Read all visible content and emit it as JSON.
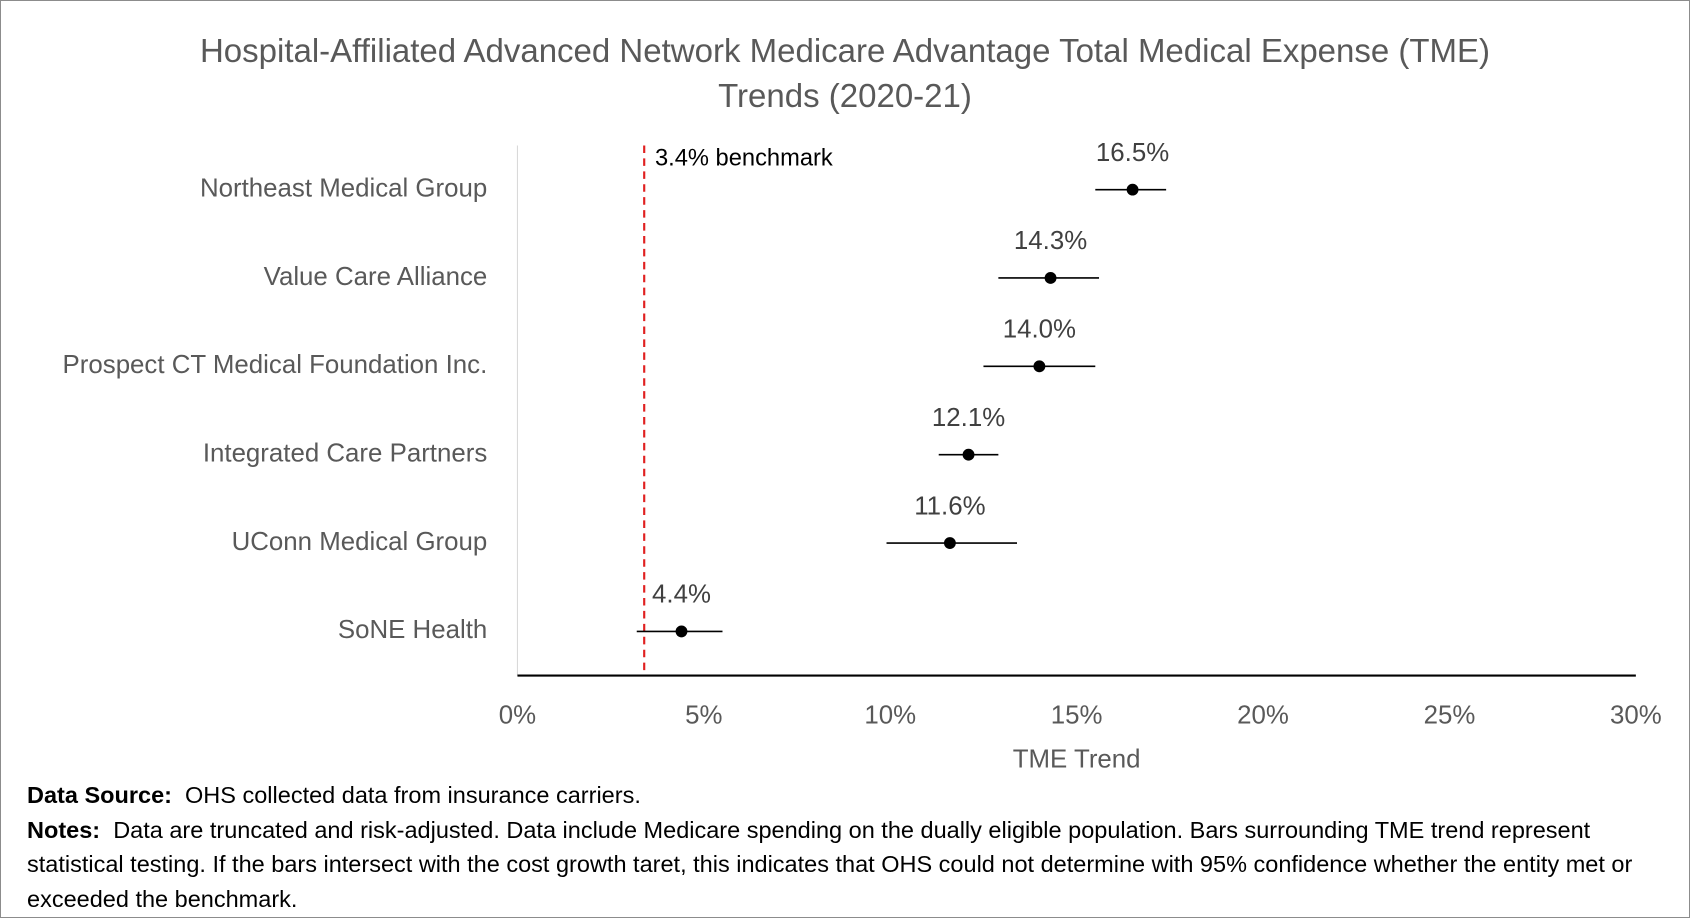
{
  "chart_data": {
    "type": "errorbar",
    "title": "Hospital-Affiliated Advanced Network Medicare Advantage Total Medical Expense (TME) Trends (2020-21)",
    "categories": [
      "Northeast Medical Group",
      "Value Care Alliance",
      "Prospect CT Medical Foundation Inc.",
      "Integrated Care Partners",
      "UConn Medical Group",
      "SoNE Health"
    ],
    "values": [
      16.5,
      14.3,
      14.0,
      12.1,
      11.6,
      4.4
    ],
    "value_labels": [
      "16.5%",
      "14.3%",
      "14.0%",
      "12.1%",
      "11.6%",
      "4.4%"
    ],
    "lower": [
      15.5,
      12.9,
      12.5,
      11.3,
      9.9,
      3.2
    ],
    "upper": [
      17.4,
      15.6,
      15.5,
      12.9,
      13.4,
      5.5
    ],
    "color": "#000000",
    "benchmark": 3.4,
    "benchmark_label": "3.4% benchmark",
    "benchmark_color": "#e02020",
    "xlabel": "TME Trend",
    "xlim": [
      0,
      30
    ],
    "xticks": [
      {
        "value": 0,
        "label": "0%"
      },
      {
        "value": 5,
        "label": "5%"
      },
      {
        "value": 10,
        "label": "10%"
      },
      {
        "value": 15,
        "label": "15%"
      },
      {
        "value": 20,
        "label": "20%"
      },
      {
        "value": 25,
        "label": "25%"
      },
      {
        "value": 30,
        "label": "30%"
      }
    ],
    "source_label": "Data Source:",
    "source_text": "OHS collected data from insurance carriers.",
    "notes_label": "Notes:",
    "notes_text": "Data are truncated and risk-adjusted.  Data include Medicare spending on the dually eligible population.  Bars surrounding TME trend represent statistical testing.  If the bars intersect with the cost growth taret, this indicates that OHS could not determine with 95% confidence whether the entity met or exceeded the benchmark."
  }
}
